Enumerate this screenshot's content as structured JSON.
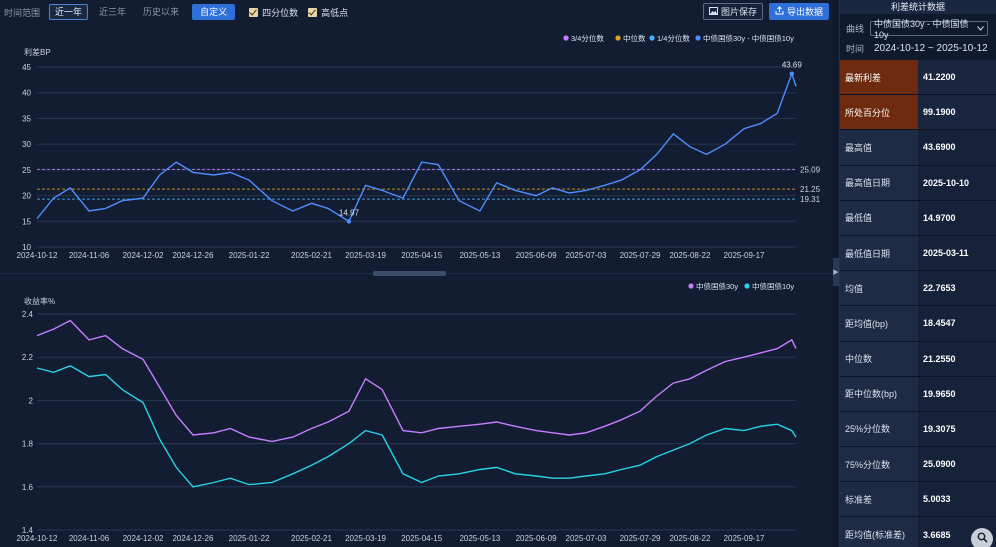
{
  "toolbar": {
    "time_range_label": "时间范围",
    "ranges": [
      "近一年",
      "近三年",
      "历史以来"
    ],
    "custom_label": "自定义",
    "quartile_check": "四分位数",
    "highlow_check": "高低点",
    "save_image": "图片保存",
    "export_data": "导出数据"
  },
  "top_chart": {
    "unit_label": "利差BP",
    "legend": [
      "3/4分位数",
      "中位数",
      "1/4分位数",
      "中债国债30y - 中债国债10y"
    ],
    "legend_colors": [
      "#c77dff",
      "#e0a020",
      "#4ab3ff",
      "#4d8dff"
    ],
    "y_ticks": [
      "45",
      "40",
      "35",
      "30",
      "25",
      "20",
      "15",
      "10"
    ],
    "x_ticks": [
      "2024-10-12",
      "2024-11-06",
      "2024-12-02",
      "2024-12-26",
      "2025-01-22",
      "2025-02-21",
      "2025-03-19",
      "2025-04-15",
      "2025-05-13",
      "2025-06-09",
      "2025-07-03",
      "2025-07-29",
      "2025-08-22",
      "2025-09-17"
    ],
    "line_labels": [
      "25.09",
      "21.25",
      "19.31"
    ],
    "max_label": "43.69",
    "min_label": "14.97"
  },
  "bottom_chart": {
    "unit_label": "收益率%",
    "legend": [
      "中债国债30y",
      "中债国债10y"
    ],
    "legend_colors": [
      "#c77dff",
      "#27d3e6"
    ],
    "y_ticks": [
      "2.4",
      "2.2",
      "2",
      "1.8",
      "1.6",
      "1.4"
    ],
    "x_ticks": [
      "2024-10-12",
      "2024-11-06",
      "2024-12-02",
      "2024-12-26",
      "2025-01-22",
      "2025-02-21",
      "2025-03-19",
      "2025-04-15",
      "2025-05-13",
      "2025-06-09",
      "2025-07-03",
      "2025-07-29",
      "2025-08-22",
      "2025-09-17"
    ]
  },
  "chart_data": [
    {
      "type": "line",
      "title": "",
      "ylabel": "利差BP",
      "ylim": [
        10,
        45
      ],
      "x_range": [
        "2024-10-12",
        "2025-10-12"
      ],
      "series": [
        {
          "name": "中债国债30y - 中债国债10y",
          "x": [
            "2024-10-12",
            "2024-10-20",
            "2024-10-28",
            "2024-11-06",
            "2024-11-14",
            "2024-11-22",
            "2024-12-02",
            "2024-12-10",
            "2024-12-18",
            "2024-12-26",
            "2025-01-05",
            "2025-01-13",
            "2025-01-22",
            "2025-02-02",
            "2025-02-12",
            "2025-02-21",
            "2025-03-01",
            "2025-03-11",
            "2025-03-19",
            "2025-03-27",
            "2025-04-06",
            "2025-04-15",
            "2025-04-23",
            "2025-05-03",
            "2025-05-13",
            "2025-05-21",
            "2025-05-30",
            "2025-06-09",
            "2025-06-17",
            "2025-06-25",
            "2025-07-03",
            "2025-07-12",
            "2025-07-20",
            "2025-07-29",
            "2025-08-06",
            "2025-08-14",
            "2025-08-22",
            "2025-08-30",
            "2025-09-08",
            "2025-09-17",
            "2025-09-25",
            "2025-10-03",
            "2025-10-10",
            "2025-10-12"
          ],
          "values": [
            15.5,
            19.5,
            21.5,
            17.0,
            17.5,
            19.0,
            19.5,
            24.0,
            26.5,
            24.5,
            24.0,
            24.5,
            23.0,
            19.0,
            17.0,
            18.5,
            17.5,
            14.97,
            22.0,
            21.0,
            19.5,
            26.5,
            26.0,
            19.0,
            17.0,
            22.5,
            21.0,
            20.0,
            21.5,
            20.5,
            21.0,
            22.0,
            23.0,
            25.0,
            28.0,
            32.0,
            29.5,
            28.0,
            30.0,
            33.0,
            34.0,
            36.0,
            43.69,
            41.22
          ]
        },
        {
          "name": "3/4分位数",
          "values": [
            25.09
          ]
        },
        {
          "name": "中位数",
          "values": [
            21.255
          ]
        },
        {
          "name": "1/4分位数",
          "values": [
            19.3075
          ]
        }
      ]
    },
    {
      "type": "line",
      "title": "",
      "ylabel": "收益率%",
      "ylim": [
        1.4,
        2.4
      ],
      "x_range": [
        "2024-10-12",
        "2025-10-12"
      ],
      "series": [
        {
          "name": "中债国债30y",
          "x": [
            "2024-10-12",
            "2024-10-20",
            "2024-10-28",
            "2024-11-06",
            "2024-11-14",
            "2024-11-22",
            "2024-12-02",
            "2024-12-10",
            "2024-12-18",
            "2024-12-26",
            "2025-01-05",
            "2025-01-13",
            "2025-01-22",
            "2025-02-02",
            "2025-02-12",
            "2025-02-21",
            "2025-03-01",
            "2025-03-11",
            "2025-03-19",
            "2025-03-27",
            "2025-04-06",
            "2025-04-15",
            "2025-04-23",
            "2025-05-03",
            "2025-05-13",
            "2025-05-21",
            "2025-05-30",
            "2025-06-09",
            "2025-06-17",
            "2025-06-25",
            "2025-07-03",
            "2025-07-12",
            "2025-07-20",
            "2025-07-29",
            "2025-08-06",
            "2025-08-14",
            "2025-08-22",
            "2025-08-30",
            "2025-09-08",
            "2025-09-17",
            "2025-09-25",
            "2025-10-03",
            "2025-10-10",
            "2025-10-12"
          ],
          "values": [
            2.3,
            2.33,
            2.37,
            2.28,
            2.3,
            2.24,
            2.19,
            2.06,
            1.93,
            1.84,
            1.85,
            1.87,
            1.83,
            1.81,
            1.83,
            1.87,
            1.9,
            1.95,
            2.1,
            2.05,
            1.86,
            1.85,
            1.87,
            1.88,
            1.89,
            1.9,
            1.88,
            1.86,
            1.85,
            1.84,
            1.85,
            1.88,
            1.91,
            1.95,
            2.02,
            2.08,
            2.1,
            2.14,
            2.18,
            2.2,
            2.22,
            2.24,
            2.28,
            2.24
          ]
        },
        {
          "name": "中债国债10y",
          "x": [
            "2024-10-12",
            "2024-10-20",
            "2024-10-28",
            "2024-11-06",
            "2024-11-14",
            "2024-11-22",
            "2024-12-02",
            "2024-12-10",
            "2024-12-18",
            "2024-12-26",
            "2025-01-05",
            "2025-01-13",
            "2025-01-22",
            "2025-02-02",
            "2025-02-12",
            "2025-02-21",
            "2025-03-01",
            "2025-03-11",
            "2025-03-19",
            "2025-03-27",
            "2025-04-06",
            "2025-04-15",
            "2025-04-23",
            "2025-05-03",
            "2025-05-13",
            "2025-05-21",
            "2025-05-30",
            "2025-06-09",
            "2025-06-17",
            "2025-06-25",
            "2025-07-03",
            "2025-07-12",
            "2025-07-20",
            "2025-07-29",
            "2025-08-06",
            "2025-08-14",
            "2025-08-22",
            "2025-08-30",
            "2025-09-08",
            "2025-09-17",
            "2025-09-25",
            "2025-10-03",
            "2025-10-10",
            "2025-10-12"
          ],
          "values": [
            2.15,
            2.13,
            2.16,
            2.11,
            2.12,
            2.05,
            1.99,
            1.82,
            1.69,
            1.6,
            1.62,
            1.64,
            1.61,
            1.62,
            1.66,
            1.7,
            1.74,
            1.8,
            1.86,
            1.84,
            1.66,
            1.62,
            1.65,
            1.66,
            1.68,
            1.69,
            1.66,
            1.65,
            1.64,
            1.64,
            1.65,
            1.66,
            1.68,
            1.7,
            1.74,
            1.77,
            1.8,
            1.84,
            1.87,
            1.86,
            1.88,
            1.89,
            1.86,
            1.83
          ]
        }
      ]
    }
  ],
  "panel": {
    "title": "利差统计数据",
    "curve_label": "曲线",
    "curve_value": "中债国债30y - 中债国债10y",
    "time_label": "时间",
    "time_value": "2024-10-12 ~ 2025-10-12",
    "stats": [
      {
        "label": "最新利差",
        "value": "41.2200"
      },
      {
        "label": "所处百分位",
        "value": "99.1900"
      },
      {
        "label": "最高值",
        "value": "43.6900"
      },
      {
        "label": "最高值日期",
        "value": "2025-10-10"
      },
      {
        "label": "最低值",
        "value": "14.9700"
      },
      {
        "label": "最低值日期",
        "value": "2025-03-11"
      },
      {
        "label": "均值",
        "value": "22.7653"
      },
      {
        "label": "距均值(bp)",
        "value": "18.4547"
      },
      {
        "label": "中位数",
        "value": "21.2550"
      },
      {
        "label": "距中位数(bp)",
        "value": "19.9650"
      },
      {
        "label": "25%分位数",
        "value": "19.3075"
      },
      {
        "label": "75%分位数",
        "value": "25.0900"
      },
      {
        "label": "标准差",
        "value": "5.0033"
      },
      {
        "label": "距均值(标准差)",
        "value": "3.6685"
      }
    ]
  }
}
